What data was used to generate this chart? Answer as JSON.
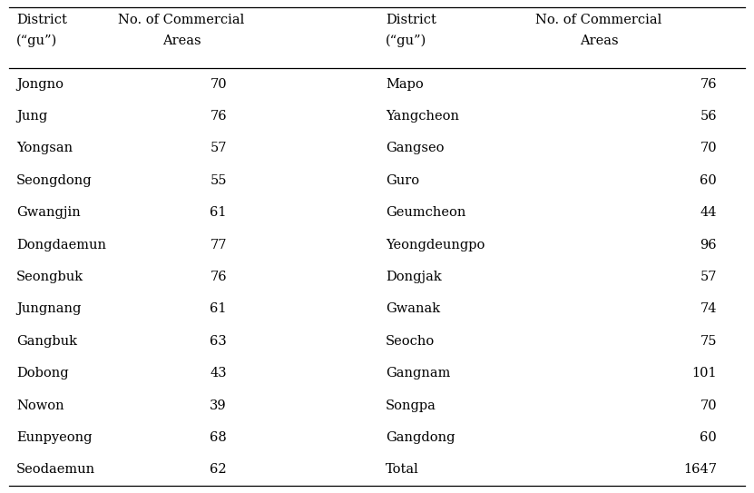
{
  "left_districts": [
    "Jongno",
    "Jung",
    "Yongsan",
    "Seongdong",
    "Gwangjin",
    "Dongdaemun",
    "Seongbuk",
    "Jungnang",
    "Gangbuk",
    "Dobong",
    "Nowon",
    "Eunpyeong",
    "Seodaemun"
  ],
  "left_values": [
    70,
    76,
    57,
    55,
    61,
    77,
    76,
    61,
    63,
    43,
    39,
    68,
    62
  ],
  "right_districts": [
    "Mapo",
    "Yangcheon",
    "Gangseo",
    "Guro",
    "Geumcheon",
    "Yeongdeungpo",
    "Dongjak",
    "Gwanak",
    "Seocho",
    "Gangnam",
    "Songpa",
    "Gangdong",
    "Total"
  ],
  "right_values": [
    76,
    56,
    70,
    60,
    44,
    96,
    57,
    74,
    75,
    101,
    70,
    60,
    1647
  ],
  "col1_header_line1": "District",
  "col1_header_line2": "(“gu”)",
  "col2_header_line1": "No. of Commercial",
  "col2_header_line2": "Areas",
  "col3_header_line1": "District",
  "col3_header_line2": "(“gu”)",
  "col4_header_line1": "No. of Commercial",
  "col4_header_line2": "Areas",
  "background_color": "#ffffff",
  "text_color": "#000000",
  "font_size": 10.5,
  "header_font_size": 10.5,
  "fig_width": 8.31,
  "fig_height": 5.43,
  "dpi": 100
}
